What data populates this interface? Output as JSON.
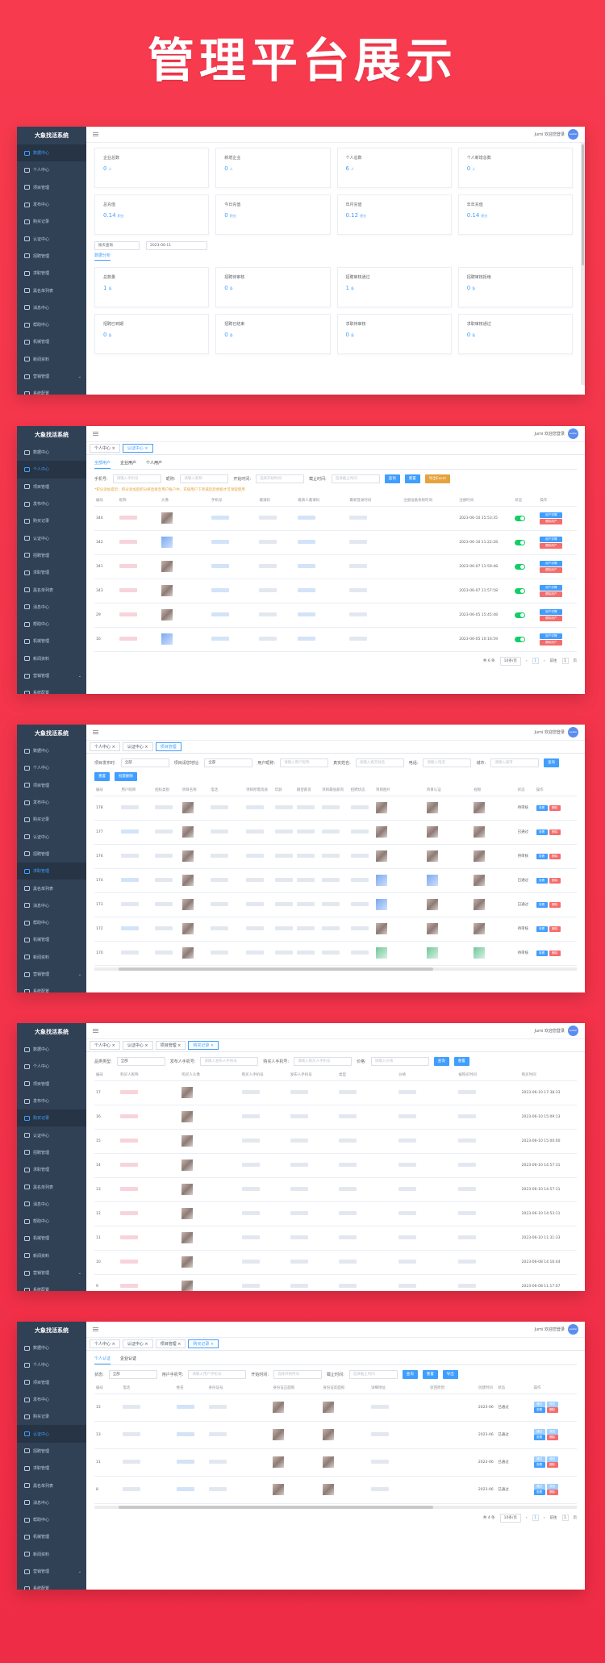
{
  "hero_title": "管理平台展示",
  "common": {
    "brand": "大象找活系统",
    "welcome": "Jumi 欢迎您登录",
    "avatar_text": "avatar",
    "nav": [
      {
        "label": "数据中心",
        "icon": "dashboard-icon"
      },
      {
        "label": "个人中心",
        "icon": "user-icon"
      },
      {
        "label": "项目管理",
        "icon": "folder-icon"
      },
      {
        "label": "发布中心",
        "icon": "publish-icon"
      },
      {
        "label": "购买记录",
        "icon": "receipt-icon"
      },
      {
        "label": "认证中心",
        "icon": "shield-icon"
      },
      {
        "label": "招聘管理",
        "icon": "briefcase-icon"
      },
      {
        "label": "求职管理",
        "icon": "search-icon"
      },
      {
        "label": "黑名单列表",
        "icon": "block-icon"
      },
      {
        "label": "消息中心",
        "icon": "message-icon"
      },
      {
        "label": "帮助中心",
        "icon": "help-icon"
      },
      {
        "label": "机械管理",
        "icon": "gear-icon"
      },
      {
        "label": "新闻资料",
        "icon": "news-icon"
      },
      {
        "label": "营销管理",
        "icon": "chart-icon"
      },
      {
        "label": "系统配置",
        "icon": "settings-icon"
      }
    ]
  },
  "s1": {
    "cards_top": [
      {
        "label": "企业总数",
        "value": "0",
        "unit": "人"
      },
      {
        "label": "新增企业",
        "value": "0",
        "unit": "人"
      },
      {
        "label": "个人总数",
        "value": "6",
        "unit": "人"
      },
      {
        "label": "个人新增总数",
        "value": "0",
        "unit": "人"
      },
      {
        "label": "总充值",
        "value": "0.14",
        "unit": "积分"
      },
      {
        "label": "今日充值",
        "value": "0",
        "unit": "积分"
      },
      {
        "label": "年月充值",
        "value": "0.12",
        "unit": "积分"
      },
      {
        "label": "年年充值",
        "value": "0.14",
        "unit": "积分"
      }
    ],
    "filter_select": "按天查询",
    "filter_date": "2023-06-11",
    "subtab": "数据分析",
    "cards_bottom": [
      {
        "label": "总数量",
        "value": "1",
        "unit": "条"
      },
      {
        "label": "招聘待审核",
        "value": "0",
        "unit": "条"
      },
      {
        "label": "招聘审核通过",
        "value": "1",
        "unit": "条"
      },
      {
        "label": "招聘审核拒绝",
        "value": "0",
        "unit": "条"
      },
      {
        "label": "招聘已到期",
        "value": "0",
        "unit": "条"
      },
      {
        "label": "招聘已结束",
        "value": "0",
        "unit": "条"
      },
      {
        "label": "求职待审核",
        "value": "0",
        "unit": "条"
      },
      {
        "label": "求职审核通过",
        "value": "0",
        "unit": "条"
      }
    ]
  },
  "s2": {
    "tabs": [
      "个人中心 ×",
      "认证中心 ×"
    ],
    "subtabs": [
      "全部用户",
      "企业用户",
      "个人用户"
    ],
    "form": {
      "phone_label": "手机号:",
      "phone_ph": "请输入手机号",
      "nick_label": "昵称:",
      "nick_ph": "请输入昵称",
      "start_label": "开始时间:",
      "start_ph": "选择开始时间",
      "end_label": "截止时间:",
      "end_ph": "选择截止时间"
    },
    "buttons": [
      "查询",
      "重置",
      "导出Excel"
    ],
    "warn": "*积分添加提示：积分添加后积分将直接至用户账户中，充值用户下单满足后余额才可领取使用",
    "headers": [
      "编号",
      "昵称",
      "头像",
      "手机号",
      "邀请码",
      "邀请人邀请码",
      "最新登录时间",
      "注册设备系统时间",
      "注册时间",
      "状态",
      "操作"
    ],
    "rows": [
      {
        "id": "344",
        "time": "2023-06-10 15:53:35"
      },
      {
        "id": "342",
        "time": "2023-06-10 11:22:28"
      },
      {
        "id": "341",
        "time": "2023-06-07 11:59:48"
      },
      {
        "id": "343",
        "time": "2023-06-07 11:57:58"
      },
      {
        "id": "29",
        "time": "2023-06-05 15:45:48"
      },
      {
        "id": "16",
        "time": "2023-06-05 10:16:59"
      }
    ],
    "btn_edit": "用户详情",
    "btn_del": "删除用户",
    "pager": {
      "total": "共 6 条",
      "size": "10条/页",
      "page": "1",
      "goto": "前往",
      "goto_page": "1",
      "unit": "页"
    }
  },
  "s3": {
    "tabs": [
      "个人中心 ×",
      "认证中心 ×",
      "项目管理"
    ],
    "form": {
      "l1": "项目发布时:",
      "v1": "全部",
      "l2": "项目请您地址:",
      "v2": "全部",
      "l3": "用户昵称:",
      "p3": "请输入用户昵称",
      "l4": "真实姓名:",
      "p4": "请输入真实姓名",
      "l5": "电话:",
      "p5": "请输入电话",
      "l6": "城市:",
      "p6": "请输入城市"
    },
    "buttons": [
      "查询",
      "重置",
      "批量删除"
    ],
    "headers": [
      "编号",
      "用户昵称",
      "招标类别",
      "项目名称",
      "电话",
      "项目所需资质",
      "年龄",
      "期望薪资",
      "项目最低薪资",
      "招聘状态",
      "项目图片",
      "项目认证",
      "视频",
      "状态",
      "操作"
    ],
    "rows": [
      {
        "id": "178",
        "status": "待审核"
      },
      {
        "id": "177",
        "status": "已通过"
      },
      {
        "id": "176",
        "status": "待审核"
      },
      {
        "id": "174",
        "status": "已通过"
      },
      {
        "id": "173",
        "status": "已通过"
      },
      {
        "id": "172",
        "status": "待审核"
      },
      {
        "id": "170",
        "status": "待审核"
      }
    ],
    "btn_view": "查看",
    "btn_del": "删除"
  },
  "s4": {
    "tabs": [
      "个人中心 ×",
      "认证中心 ×",
      "项目管理 ×",
      "购买记录 ×"
    ],
    "form": {
      "l1": "品类类型:",
      "v1": "全部",
      "l2": "发布人手机号:",
      "p2": "请输入发布人手机号",
      "l3": "购买人手机号:",
      "p3": "请输入购买人手机号",
      "l4": "价格:",
      "p4": "请输入价格"
    },
    "buttons": [
      "查询",
      "重置"
    ],
    "headers": [
      "编号",
      "购买人昵称",
      "购买人头像",
      "购买人手机号",
      "发布人手机号",
      "类型",
      "价格",
      "被购买时间",
      "购买时间"
    ],
    "rows": [
      {
        "id": "17",
        "time": "2023-06-10 17:38:33"
      },
      {
        "id": "16",
        "time": "2023-06-10 15:09:13"
      },
      {
        "id": "15",
        "time": "2023-06-10 15:00:00"
      },
      {
        "id": "14",
        "time": "2023-06-10 14:57:31"
      },
      {
        "id": "13",
        "time": "2023-06-10 14:57:11"
      },
      {
        "id": "12",
        "time": "2023-06-10 14:53:11"
      },
      {
        "id": "11",
        "time": "2023-06-10 11:31:33"
      },
      {
        "id": "10",
        "time": "2023-06-08 14:16:44"
      },
      {
        "id": "9",
        "time": "2023-06-08 11:17:07"
      }
    ]
  },
  "s5": {
    "tabs": [
      "个人中心 ×",
      "认证中心 ×",
      "项目管理 ×",
      "购买记录 ×"
    ],
    "subtabs": [
      "个人认证",
      "企业认证"
    ],
    "form": {
      "l1": "状态:",
      "v1": "全部",
      "l2": "用户手机号:",
      "p2": "请输入用户手机号",
      "l3": "开始时间:",
      "p3": "选择开始时间",
      "l4": "截止时间:",
      "p4": "选择截止时间"
    },
    "buttons": [
      "查询",
      "重置",
      "导出"
    ],
    "headers": [
      "编号",
      "电话",
      "姓名",
      "身份证号",
      "身份证正面照",
      "身份证反面照",
      "详细地址",
      "驳回原因",
      "创建时间",
      "状态",
      "操作"
    ],
    "rows": [
      {
        "id": "15",
        "time": "2023-06",
        "status": "已通过"
      },
      {
        "id": "13",
        "time": "2023-06",
        "status": "已通过"
      },
      {
        "id": "11",
        "time": "2023-06",
        "status": "已通过"
      },
      {
        "id": "8",
        "time": "2023-06",
        "status": "已通过"
      }
    ],
    "btn_pass": "通过",
    "btn_reject": "驳回",
    "btn_view": "查看",
    "btn_del": "删除",
    "pager": {
      "total": "共 4 条",
      "size": "10条/页",
      "page": "1",
      "goto": "前往",
      "goto_page": "1",
      "unit": "页"
    }
  }
}
